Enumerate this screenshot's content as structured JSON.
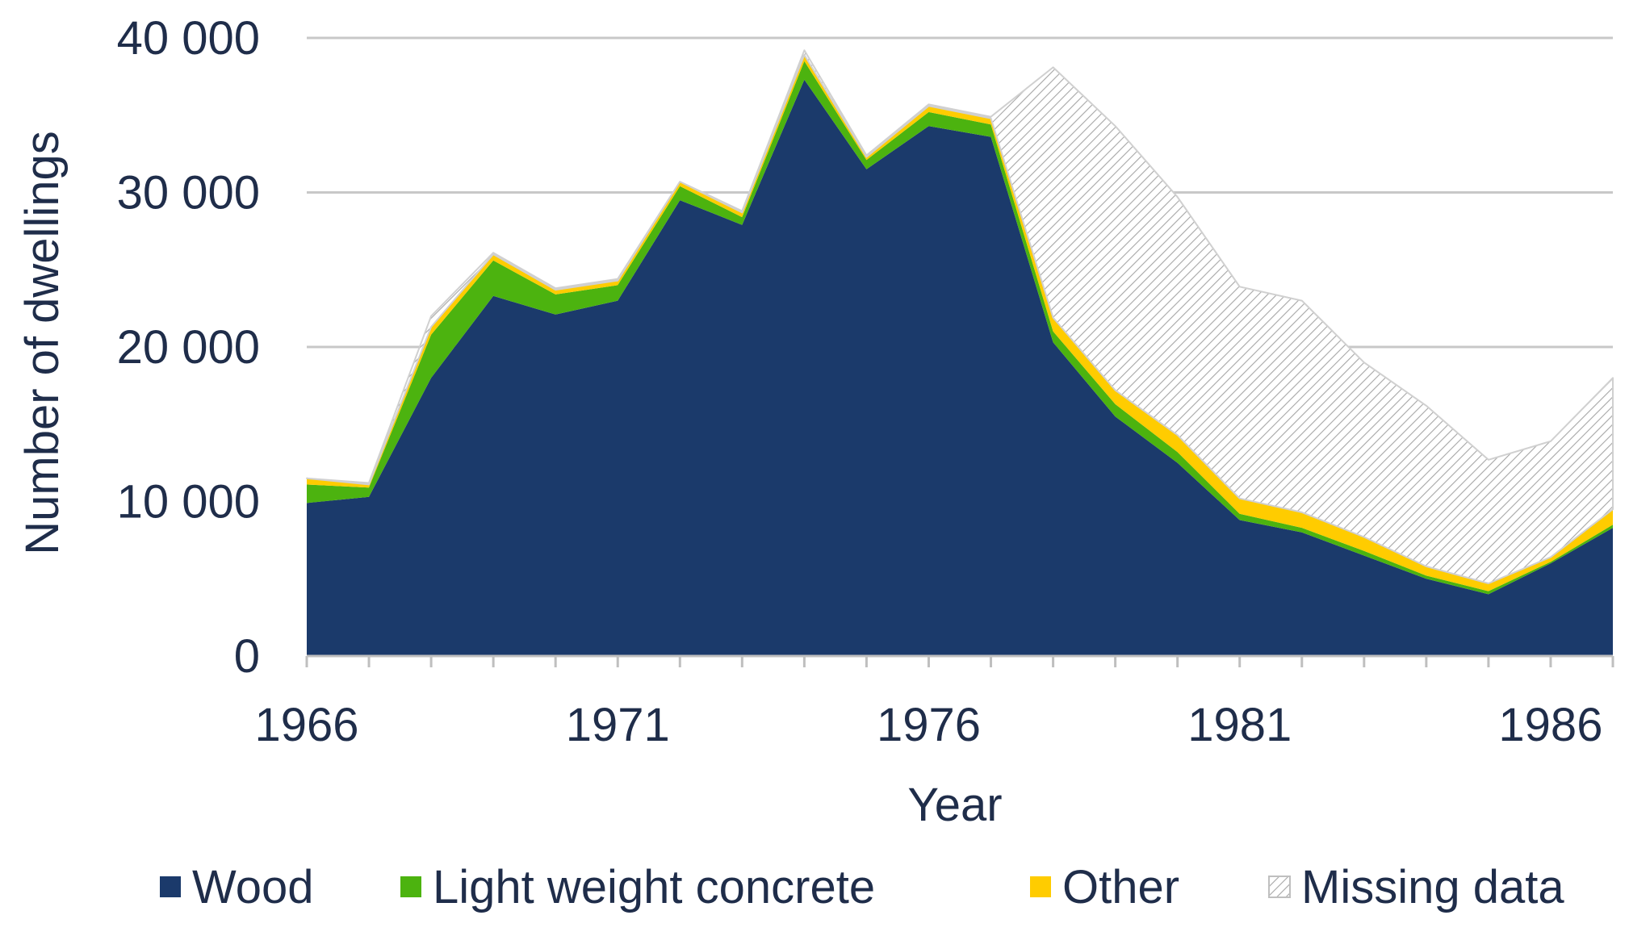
{
  "chart_data": {
    "type": "area",
    "stacked": true,
    "xlabel": "Year",
    "ylabel": "Number of dwellings",
    "xlim": [
      1966,
      1987
    ],
    "ylim": [
      0,
      40000
    ],
    "x_ticks": [
      1966,
      1971,
      1976,
      1981,
      1986
    ],
    "x_tick_labels": [
      "1966",
      "1971",
      "1976",
      "1981",
      "1986"
    ],
    "y_ticks": [
      0,
      10000,
      20000,
      30000,
      40000
    ],
    "y_tick_labels": [
      "0",
      "10 000",
      "20 000",
      "30 000",
      "40 000"
    ],
    "grid": "horizontal",
    "legend_position": "bottom",
    "x": [
      1966,
      1967,
      1968,
      1969,
      1970,
      1971,
      1972,
      1973,
      1974,
      1975,
      1976,
      1977,
      1978,
      1979,
      1980,
      1981,
      1982,
      1983,
      1984,
      1985,
      1986,
      1987
    ],
    "series": [
      {
        "name": "Wood",
        "color": "#1b3a6b",
        "pattern": "solid",
        "values": [
          9900,
          10300,
          18000,
          23300,
          22100,
          23000,
          29500,
          27900,
          37300,
          31500,
          34300,
          33600,
          20300,
          15500,
          12500,
          8800,
          8000,
          6500,
          5000,
          4000,
          6000,
          8300
        ]
      },
      {
        "name": "Light weight concrete",
        "color": "#4cb30f",
        "pattern": "solid",
        "values": [
          1200,
          600,
          2800,
          2300,
          1300,
          1000,
          900,
          500,
          1200,
          600,
          900,
          800,
          700,
          800,
          700,
          400,
          300,
          300,
          200,
          200,
          100,
          200
        ]
      },
      {
        "name": "Other",
        "color": "#ffcc00",
        "pattern": "solid",
        "values": [
          400,
          200,
          500,
          400,
          300,
          300,
          300,
          300,
          400,
          200,
          400,
          400,
          900,
          900,
          1100,
          1000,
          1000,
          900,
          600,
          500,
          300,
          1000
        ]
      },
      {
        "name": "Missing data",
        "color": "#bfbfbf",
        "pattern": "hatch",
        "values": [
          0,
          100,
          700,
          100,
          100,
          100,
          0,
          100,
          300,
          100,
          100,
          100,
          16200,
          17100,
          15400,
          13700,
          13700,
          11300,
          10400,
          8000,
          7500,
          8500
        ]
      }
    ]
  }
}
